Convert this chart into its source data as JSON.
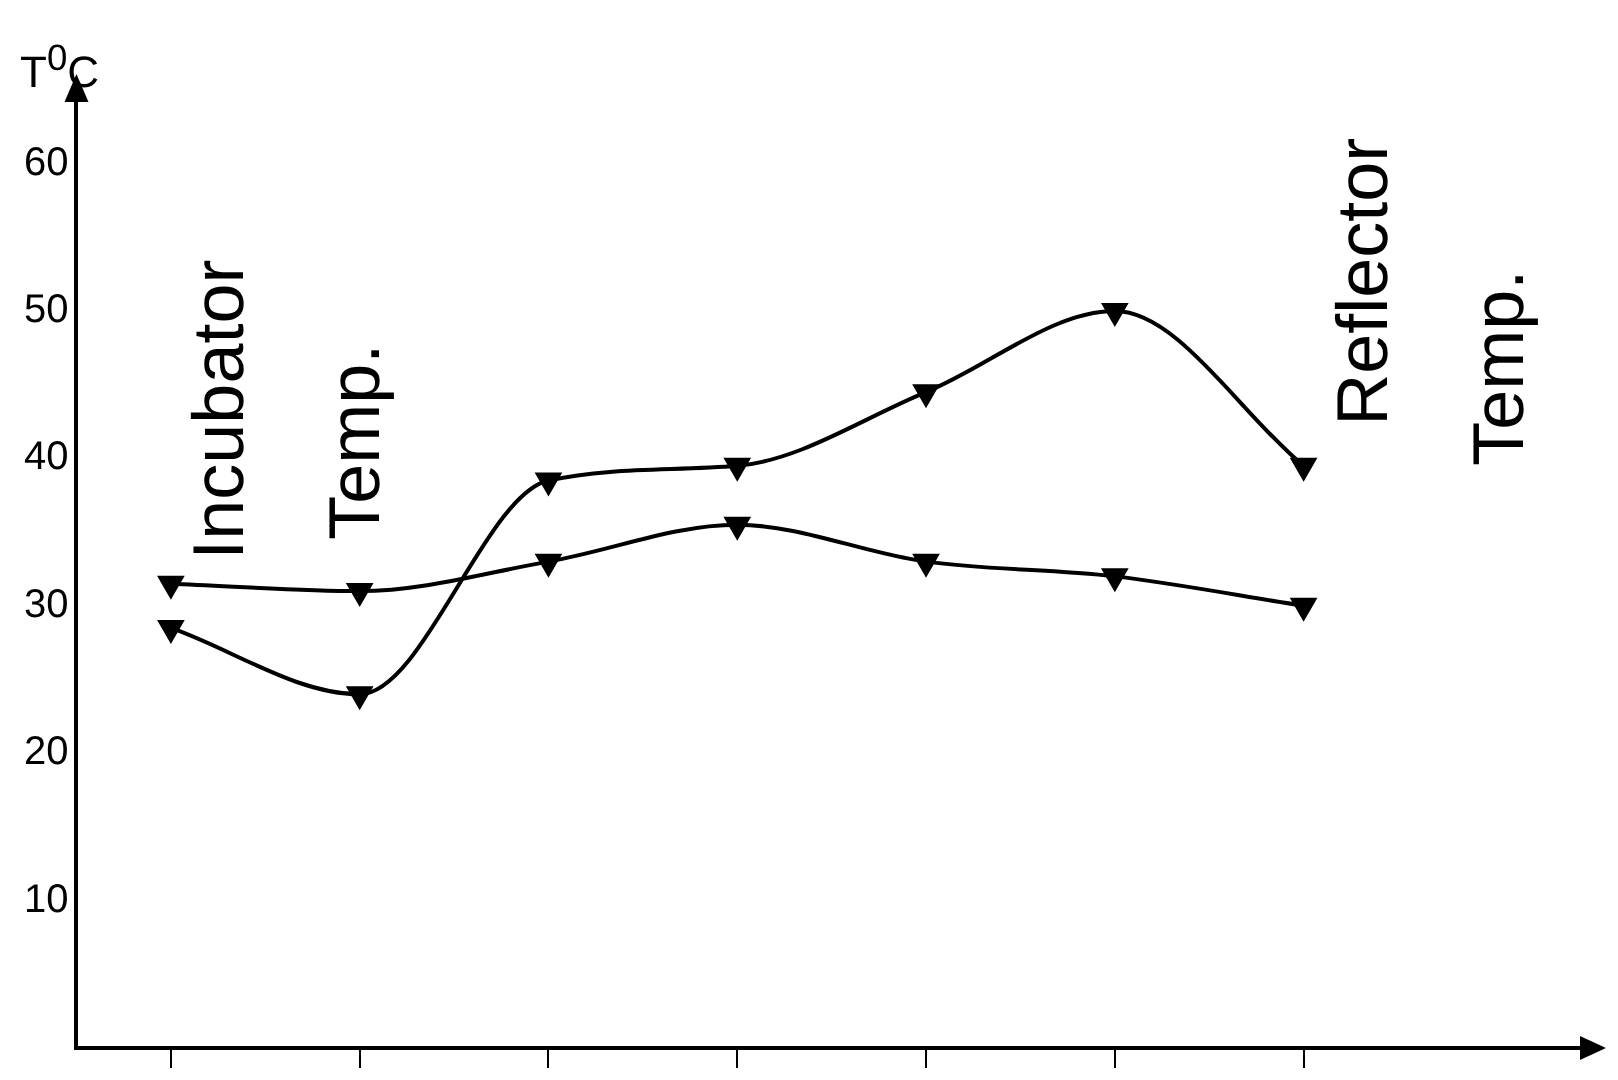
{
  "chart_data": {
    "type": "line",
    "ylabel": "T$^{0}$C",
    "categories": [
      null,
      null,
      null,
      null,
      null,
      null,
      null
    ],
    "series": [
      {
        "name": "Incubator Temp.",
        "color": "#000000",
        "values": [
          31.5,
          31,
          33,
          35.5,
          33,
          32,
          30
        ]
      },
      {
        "name": "Reflector Temp.",
        "color": "#000000",
        "values": [
          28.5,
          24,
          38.5,
          39.5,
          44.5,
          50,
          39.5
        ]
      }
    ],
    "ylim": [
      0,
      65
    ],
    "yticks": [
      10,
      20,
      30,
      40,
      50,
      60
    ],
    "grid": false,
    "legend": false,
    "marker": "triangle",
    "line_style": "solid",
    "tick_labels": "y"
  }
}
